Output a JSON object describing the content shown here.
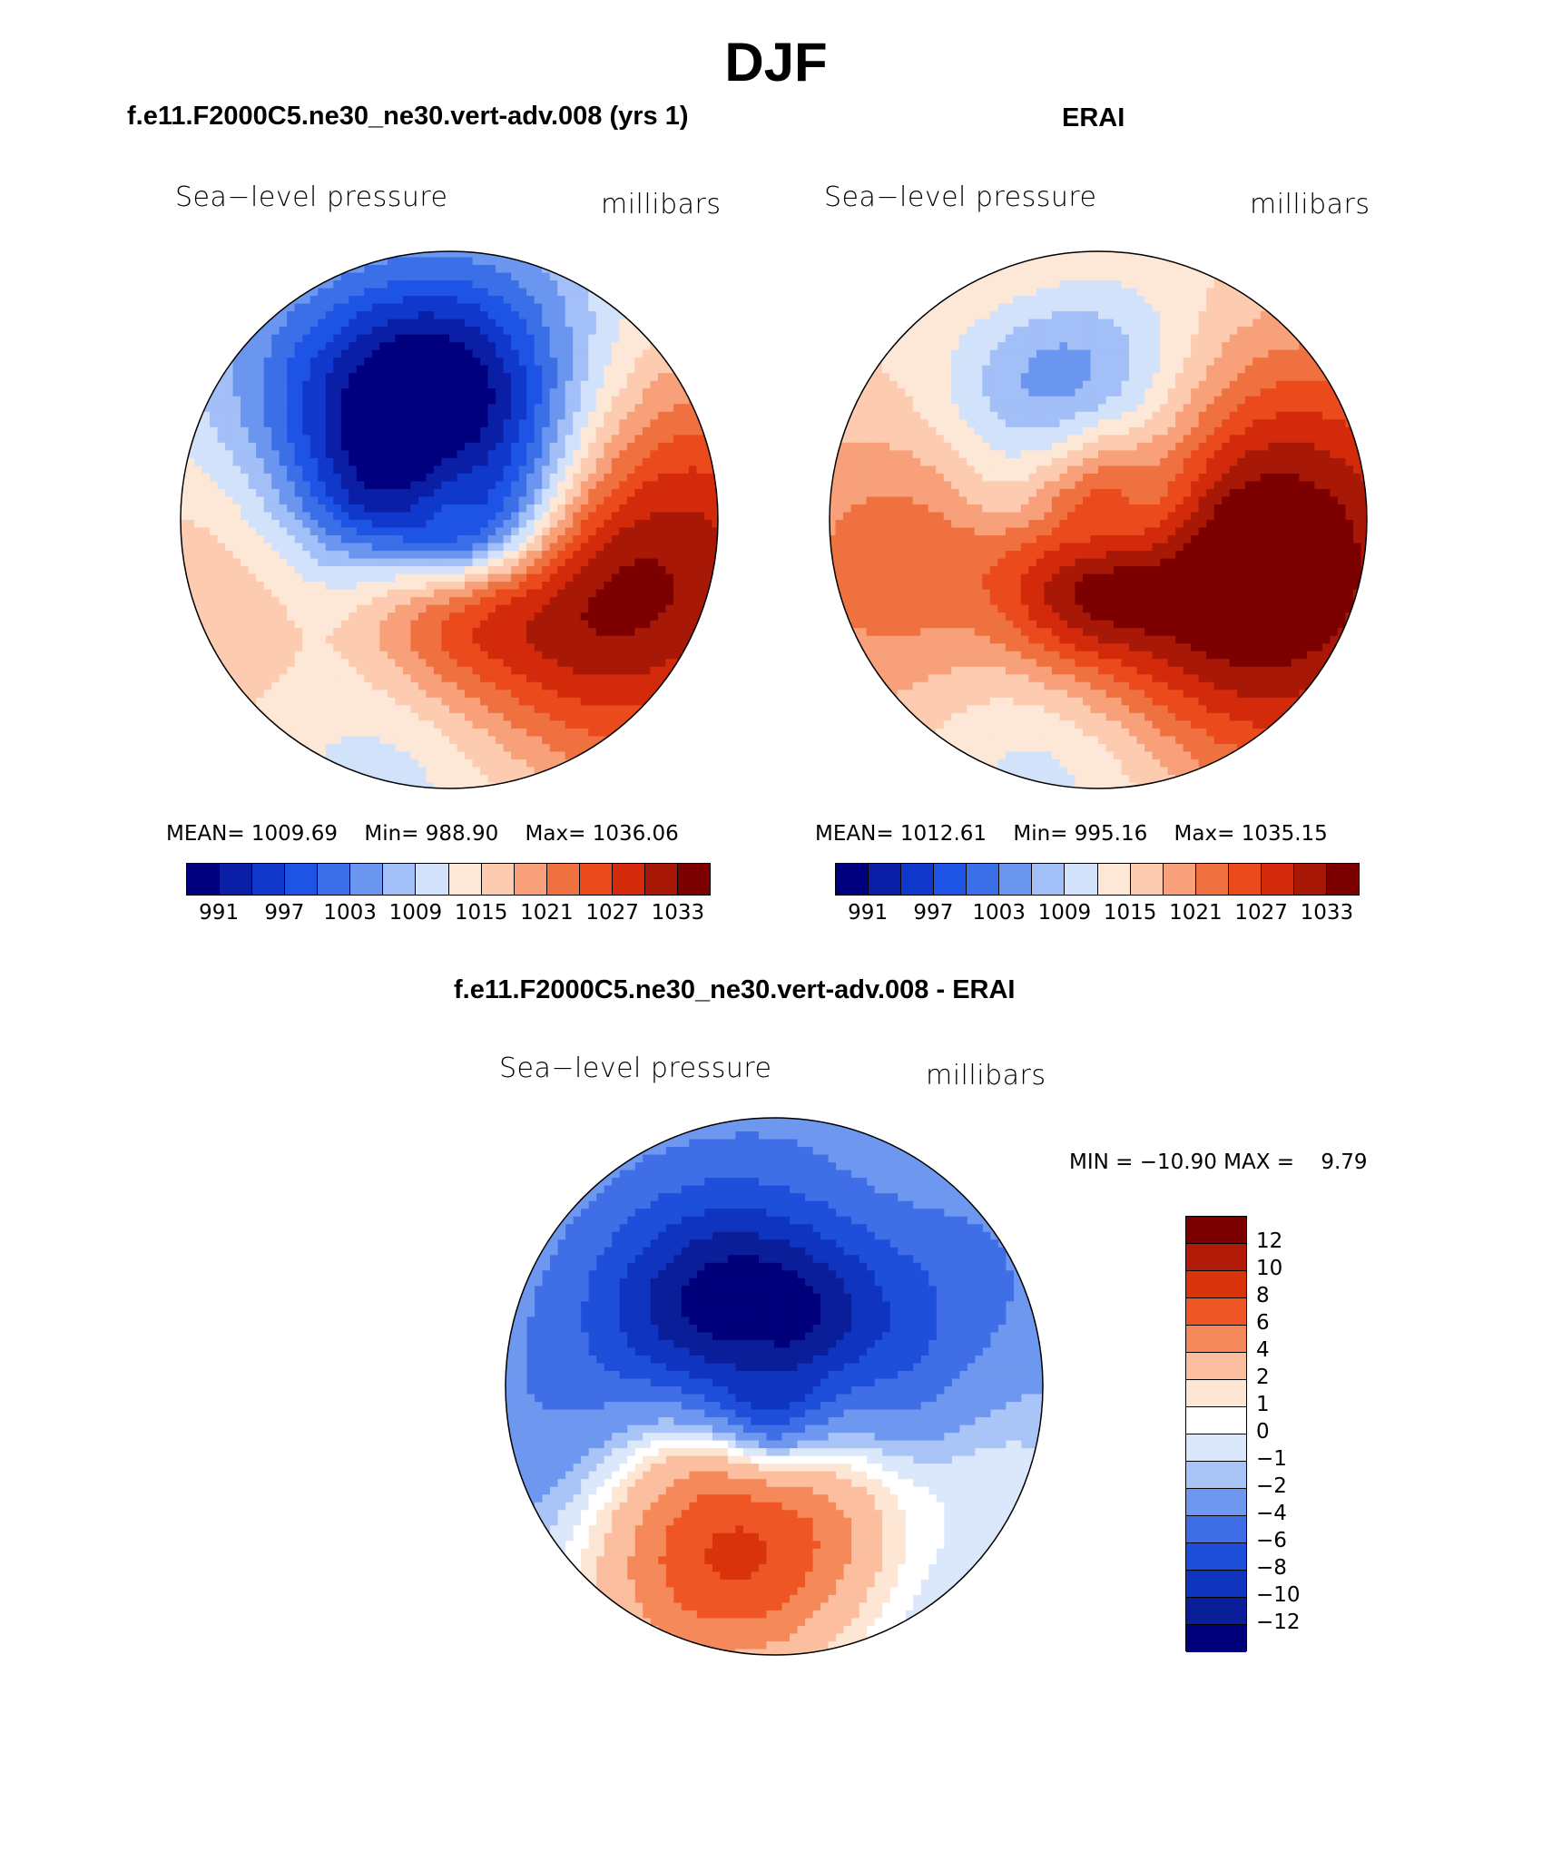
{
  "figure": {
    "season": "DJF"
  },
  "panels": [
    {
      "id": "model",
      "header": "f.e11.F2000C5.ne30_ne30.vert-adv.008 (yrs 1)",
      "variable": "Sea−level pressure",
      "units": "millibars",
      "stats": {
        "mean_label": "MEAN=",
        "mean": "1009.69",
        "min_label": "Min=",
        "min": "988.90",
        "max_label": "Max=",
        "max": "1036.06"
      },
      "fields": [
        {
          "lon": -30,
          "lat": 62,
          "amp": -21,
          "sig": 14
        },
        {
          "lon": 0,
          "lat": 70,
          "amp": -12,
          "sig": 14
        },
        {
          "lon": 40,
          "lat": 72,
          "amp": -12,
          "sig": 14
        },
        {
          "lon": -170,
          "lat": 52,
          "amp": -8,
          "sig": 12
        },
        {
          "lon": 100,
          "lat": 50,
          "amp": 22,
          "sig": 18
        },
        {
          "lon": -110,
          "lat": 48,
          "amp": 7,
          "sig": 16
        },
        {
          "lon": 150,
          "lat": 72,
          "amp": 7,
          "sig": 14
        },
        {
          "lon": -20,
          "lat": 36,
          "amp": 6,
          "sig": 10
        }
      ]
    },
    {
      "id": "obs",
      "header": "ERAI",
      "variable": "Sea−level pressure",
      "units": "millibars",
      "stats": {
        "mean_label": "MEAN=",
        "mean": "1012.61",
        "min_label": "Min=",
        "min": "995.16",
        "max_label": "Max=",
        "max": "1035.15"
      },
      "fields": [
        {
          "lon": -25,
          "lat": 62,
          "amp": -16,
          "sig": 12
        },
        {
          "lon": 10,
          "lat": 70,
          "amp": -8,
          "sig": 12
        },
        {
          "lon": -170,
          "lat": 52,
          "amp": -12,
          "sig": 12
        },
        {
          "lon": 100,
          "lat": 50,
          "amp": 21,
          "sig": 18
        },
        {
          "lon": 150,
          "lat": 72,
          "amp": 10,
          "sig": 16
        },
        {
          "lon": -110,
          "lat": 50,
          "amp": 10,
          "sig": 16
        },
        {
          "lon": -90,
          "lat": 78,
          "amp": 6,
          "sig": 12
        },
        {
          "lon": -20,
          "lat": 35,
          "amp": 9,
          "sig": 10
        }
      ]
    }
  ],
  "colorbar": {
    "ticks": [
      "991",
      "997",
      "1003",
      "1009",
      "1015",
      "1021",
      "1027",
      "1033"
    ],
    "colors": [
      "#00007f",
      "#0a1fa6",
      "#1039cc",
      "#1d54e5",
      "#3a6fe8",
      "#6b96f0",
      "#a3bff7",
      "#d3e2fb",
      "#fde7d6",
      "#fccbb0",
      "#f7a07a",
      "#f07140",
      "#ea4a1c",
      "#d32a0b",
      "#a81806",
      "#7c0000"
    ]
  },
  "difference": {
    "header": "f.e11.F2000C5.ne30_ne30.vert-adv.008 - ERAI",
    "variable": "Sea−level pressure",
    "units": "millibars",
    "minmax_text": "MIN = −10.90 MAX =    9.79",
    "fields": [
      {
        "lon": 40,
        "lat": 78,
        "amp": -8,
        "sig": 16
      },
      {
        "lon": -40,
        "lat": 65,
        "amp": -6,
        "sig": 10
      },
      {
        "lon": -170,
        "lat": 58,
        "amp": 9,
        "sig": 12
      },
      {
        "lon": -150,
        "lat": 45,
        "amp": 3,
        "sig": 10
      },
      {
        "lon": 110,
        "lat": 40,
        "amp": 2,
        "sig": 8
      },
      {
        "lon": 30,
        "lat": 40,
        "amp": 2,
        "sig": 7
      },
      {
        "lon": -100,
        "lat": 55,
        "amp": -3,
        "sig": 12
      }
    ],
    "levels": [
      "12",
      "10",
      "8",
      "6",
      "4",
      "2",
      "1",
      "0",
      "−1",
      "−2",
      "−4",
      "−6",
      "−8",
      "−10",
      "−12"
    ],
    "colors": [
      "#7c0000",
      "#b01a06",
      "#d9330c",
      "#ef5625",
      "#f5895a",
      "#fbbfa0",
      "#fde6d4",
      "#ffffff",
      "#dbe7fb",
      "#a9c4f6",
      "#6e98ef",
      "#3f6ee6",
      "#1e4fdb",
      "#0f35c0",
      "#0a1e99",
      "#00007a"
    ]
  }
}
